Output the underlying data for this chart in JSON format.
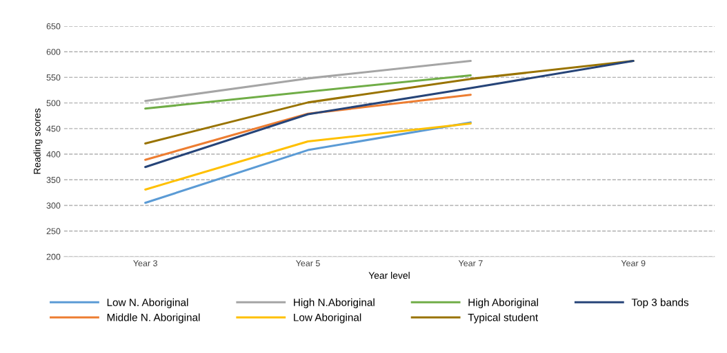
{
  "chart_data": {
    "type": "line",
    "xlabel": "Year level",
    "ylabel": "Reading scores",
    "categories": [
      "Year 3",
      "Year 5",
      "Year 7",
      "Year 9"
    ],
    "series": [
      {
        "name": "Low N. Aboriginal",
        "color": "#5b9bd5",
        "values": [
          305,
          408,
          462,
          null
        ]
      },
      {
        "name": "Middle N. Aboriginal",
        "color": "#ed7d31",
        "values": [
          389,
          479,
          516,
          null
        ]
      },
      {
        "name": "High N.Aboriginal",
        "color": "#a5a5a5",
        "values": [
          504,
          548,
          582,
          null
        ]
      },
      {
        "name": "Low Aboriginal",
        "color": "#ffc000",
        "values": [
          331,
          425,
          460,
          null
        ]
      },
      {
        "name": "High Aboriginal",
        "color": "#70ad47",
        "values": [
          489,
          522,
          554,
          null
        ]
      },
      {
        "name": "Typical student",
        "color": "#997300",
        "values": [
          421,
          501,
          547,
          582
        ]
      },
      {
        "name": "Top 3 bands",
        "color": "#264478",
        "values": [
          375,
          478,
          529,
          582
        ]
      }
    ],
    "ylim": [
      200,
      650
    ],
    "yticks": [
      200,
      250,
      300,
      350,
      400,
      450,
      500,
      550,
      600,
      650
    ],
    "grid": "y",
    "legend": "bottom",
    "marker": "none",
    "line_style": "solid"
  }
}
